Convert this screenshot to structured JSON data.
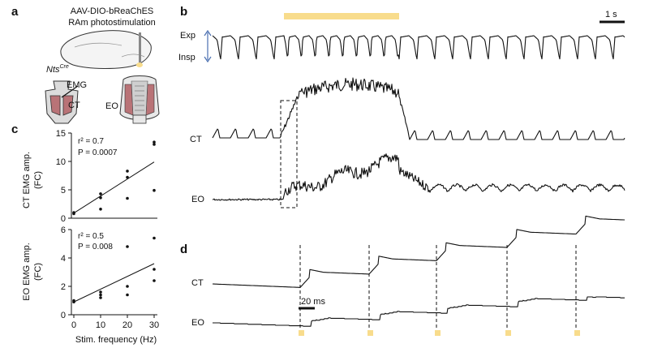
{
  "panels": {
    "a": "a",
    "b": "b",
    "c": "c",
    "d": "d"
  },
  "panel_a": {
    "line1": "AAV-DIO-bReaChES",
    "line2": "RAm photostimulation",
    "mouse_label": "Nts",
    "mouse_label_sup": "Cre",
    "emg_label": "EMG",
    "ct_label": "CT",
    "eo_label": "EO"
  },
  "panel_b": {
    "scale_label": "1 s",
    "exp_label": "Exp",
    "insp_label": "Insp",
    "ct_label": "CT",
    "eo_label": "EO",
    "stim_color": "#f8dc8c"
  },
  "panel_d": {
    "ct_label": "CT",
    "eo_label": "EO",
    "scale_label": "20 ms",
    "pulse_color": "#f8dc8c"
  },
  "chart_data": [
    {
      "type": "scatter",
      "ylabel": "CT EMG amp.\n(FC)",
      "ylabel_line1": "CT EMG amp.",
      "ylabel_line2": "(FC)",
      "ylim": [
        0,
        15
      ],
      "yticks": [
        "0",
        "5",
        "10",
        "15"
      ],
      "xlim": [
        0,
        30
      ],
      "annotation_r2": "r² = 0.7",
      "annotation_p": "P = 0.0007",
      "points": [
        {
          "x": 0,
          "y": 0.8
        },
        {
          "x": 0,
          "y": 1.0
        },
        {
          "x": 10,
          "y": 1.6
        },
        {
          "x": 10,
          "y": 3.6
        },
        {
          "x": 10,
          "y": 4.3
        },
        {
          "x": 20,
          "y": 3.5
        },
        {
          "x": 20,
          "y": 7.2
        },
        {
          "x": 20,
          "y": 8.3
        },
        {
          "x": 30,
          "y": 4.9
        },
        {
          "x": 30,
          "y": 13.0
        },
        {
          "x": 30,
          "y": 13.4
        }
      ],
      "fit": {
        "x": [
          0,
          30
        ],
        "y": [
          0.9,
          9.9
        ]
      }
    },
    {
      "type": "scatter",
      "ylabel_line1": "EO EMG amp.",
      "ylabel_line2": "(FC)",
      "xlabel": "Stim. frequency (Hz)",
      "ylim": [
        0,
        6
      ],
      "yticks": [
        "0",
        "2",
        "4",
        "6"
      ],
      "xlim": [
        0,
        30
      ],
      "xticks": [
        "0",
        "10",
        "20",
        "30"
      ],
      "annotation_r2": "r² = 0.5",
      "annotation_p": "P = 0.008",
      "points": [
        {
          "x": 0,
          "y": 0.9
        },
        {
          "x": 0,
          "y": 1.0
        },
        {
          "x": 10,
          "y": 1.2
        },
        {
          "x": 10,
          "y": 1.4
        },
        {
          "x": 10,
          "y": 1.6
        },
        {
          "x": 20,
          "y": 1.4
        },
        {
          "x": 20,
          "y": 2.0
        },
        {
          "x": 20,
          "y": 4.8
        },
        {
          "x": 30,
          "y": 2.4
        },
        {
          "x": 30,
          "y": 3.2
        },
        {
          "x": 30,
          "y": 5.4
        }
      ],
      "fit": {
        "x": [
          0,
          30
        ],
        "y": [
          0.9,
          3.6
        ]
      }
    }
  ]
}
